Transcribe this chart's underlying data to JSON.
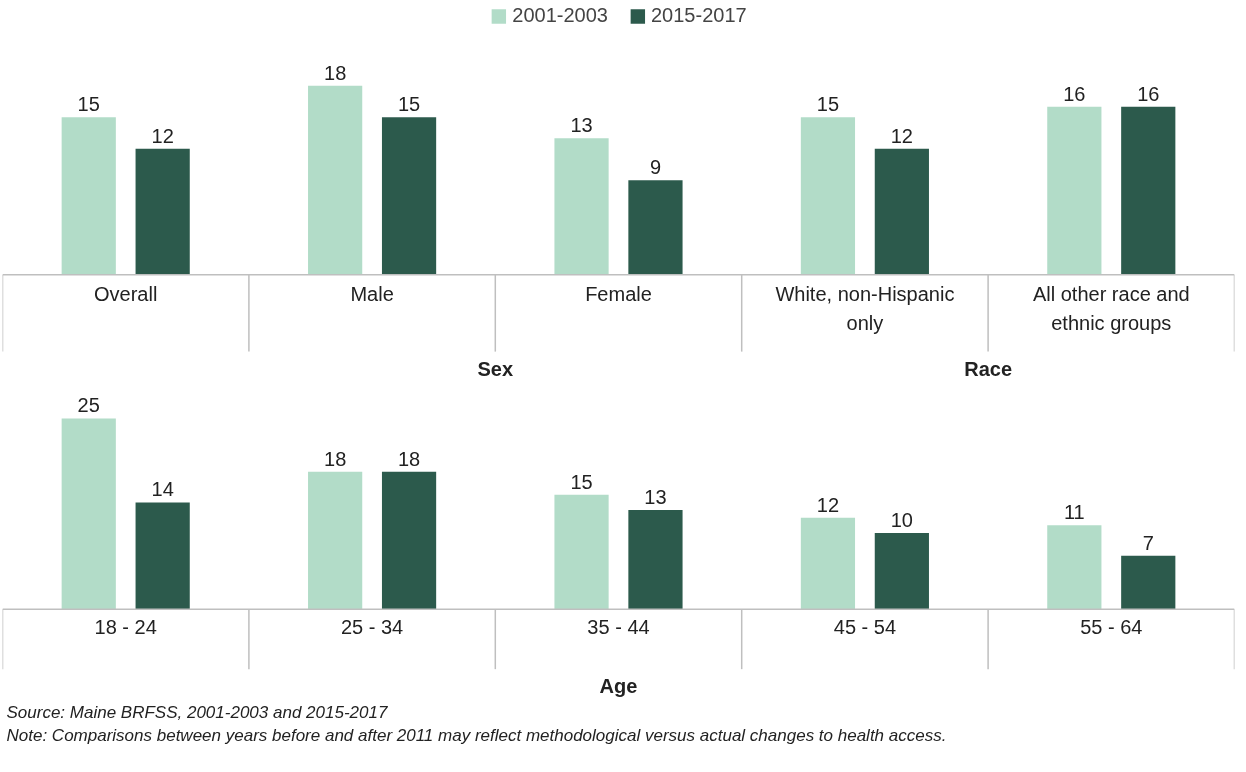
{
  "chart_data": [
    {
      "type": "bar",
      "categories": [
        "Overall",
        "Male",
        "Female",
        "White, non-Hispanic only",
        "All other race and ethnic groups"
      ],
      "series": [
        {
          "name": "2001-2003",
          "color": "#b2dcc8",
          "values": [
            15,
            18,
            13,
            15,
            16
          ]
        },
        {
          "name": "2015-2017",
          "color": "#2c5a4c",
          "values": [
            12,
            15,
            9,
            12,
            16
          ]
        }
      ],
      "data_labels": true,
      "legend": "top",
      "annotations": [
        "Sex",
        "Race"
      ]
    },
    {
      "type": "bar",
      "categories": [
        "18 - 24",
        "25 - 34",
        "35 - 44",
        "45 - 54",
        "55 - 64"
      ],
      "xlabel": "Age",
      "series": [
        {
          "name": "2001-2003",
          "color": "#b2dcc8",
          "values": [
            25,
            18,
            15,
            12,
            11
          ]
        },
        {
          "name": "2015-2017",
          "color": "#2c5a4c",
          "values": [
            14,
            18,
            13,
            10,
            7
          ]
        }
      ],
      "data_labels": true,
      "annotations": [
        "Source: Maine BRFSS, 2001-2003 and 2015-2017",
        "Note: Comparisons between years before and after 2011 may reflect methodological versus actual changes to health access."
      ]
    }
  ]
}
